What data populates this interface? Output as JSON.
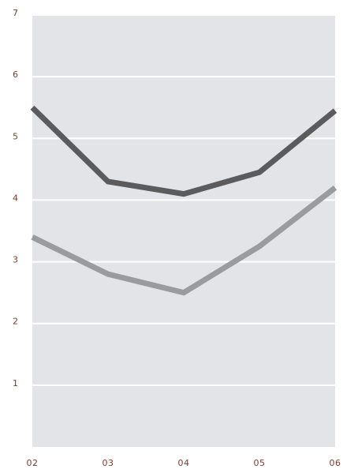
{
  "chart_data": {
    "type": "line",
    "categories": [
      "02",
      "03",
      "04",
      "05",
      "06"
    ],
    "series": [
      {
        "color": "#5b5b5d",
        "values": [
          5.5,
          4.3,
          4.1,
          4.45,
          5.45
        ]
      },
      {
        "color": "#999c9f",
        "values": [
          3.4,
          2.8,
          2.5,
          3.25,
          4.2
        ]
      }
    ],
    "ylim": [
      0,
      7
    ],
    "yticks": [
      1,
      2,
      3,
      4,
      5,
      6,
      7
    ],
    "grid": true,
    "background": "#e2e4e7",
    "grid_color": "#ffffff"
  }
}
